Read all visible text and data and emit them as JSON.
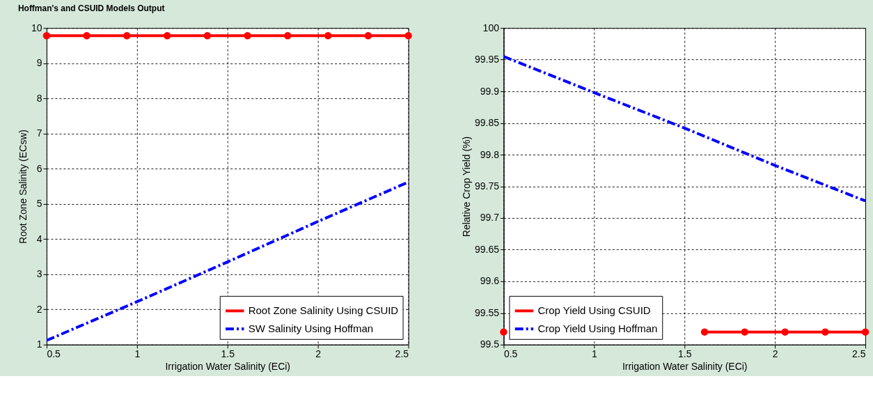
{
  "chart_data": [
    {
      "type": "line",
      "title": "Hoffman's and CSUID Models Output",
      "xlabel": "Irrigation Water Salinity (ECi)",
      "ylabel": "Root Zone Salinity (ECsw)",
      "xlim": [
        0.5,
        2.5
      ],
      "xticks": [
        0.5,
        1,
        1.5,
        2,
        2.5
      ],
      "ylim": [
        1,
        10
      ],
      "yticks": [
        1,
        2,
        3,
        4,
        5,
        6,
        7,
        8,
        9,
        10
      ],
      "grid": true,
      "legend": "bottom right",
      "series": [
        {
          "name": "Root Zone Salinity Using CSUID",
          "color": "#ff0000",
          "marker": "circle",
          "line_style": "solid",
          "x": [
            0.5,
            0.722,
            0.944,
            1.167,
            1.389,
            1.611,
            1.833,
            2.056,
            2.278,
            2.5
          ],
          "values": [
            9.78,
            9.78,
            9.78,
            9.78,
            9.78,
            9.78,
            9.78,
            9.78,
            9.78,
            9.78
          ]
        },
        {
          "name": "SW Salinity Using Hoffman",
          "color": "#0000ff",
          "marker": "none",
          "line_style": "dashed",
          "x": [
            0.5,
            1,
            1.5,
            2,
            2.5
          ],
          "values": [
            1.12,
            2.22,
            3.35,
            4.5,
            5.62
          ]
        }
      ]
    },
    {
      "type": "line",
      "xlabel": "Irrigation Water Salinity (ECi)",
      "ylabel": "Relative Crop Yield (%)",
      "xlim": [
        0.5,
        2.5
      ],
      "xticks": [
        0.5,
        1,
        1.5,
        2,
        2.5
      ],
      "ylim": [
        99.5,
        100
      ],
      "yticks": [
        99.5,
        99.55,
        99.6,
        99.65,
        99.7,
        99.75,
        99.8,
        99.85,
        99.9,
        99.95,
        100
      ],
      "grid": true,
      "legend": "bottom left",
      "series": [
        {
          "name": "Crop Yield Using CSUID",
          "color": "#ff0000",
          "marker": "circle",
          "line_style": "solid",
          "x": [
            0.5,
            0.722,
            0.944,
            1.167,
            1.389,
            1.611,
            1.833,
            2.056,
            2.278,
            2.5
          ],
          "values": [
            99.52,
            null,
            null,
            null,
            null,
            99.52,
            99.52,
            99.52,
            99.52,
            99.52
          ]
        },
        {
          "name": "Crop Yield Using Hoffman",
          "color": "#0000ff",
          "marker": "none",
          "line_style": "dashed",
          "x": [
            0.5,
            1,
            1.5,
            2,
            2.5
          ],
          "values": [
            99.955,
            99.898,
            99.842,
            99.783,
            99.727
          ]
        }
      ]
    }
  ]
}
